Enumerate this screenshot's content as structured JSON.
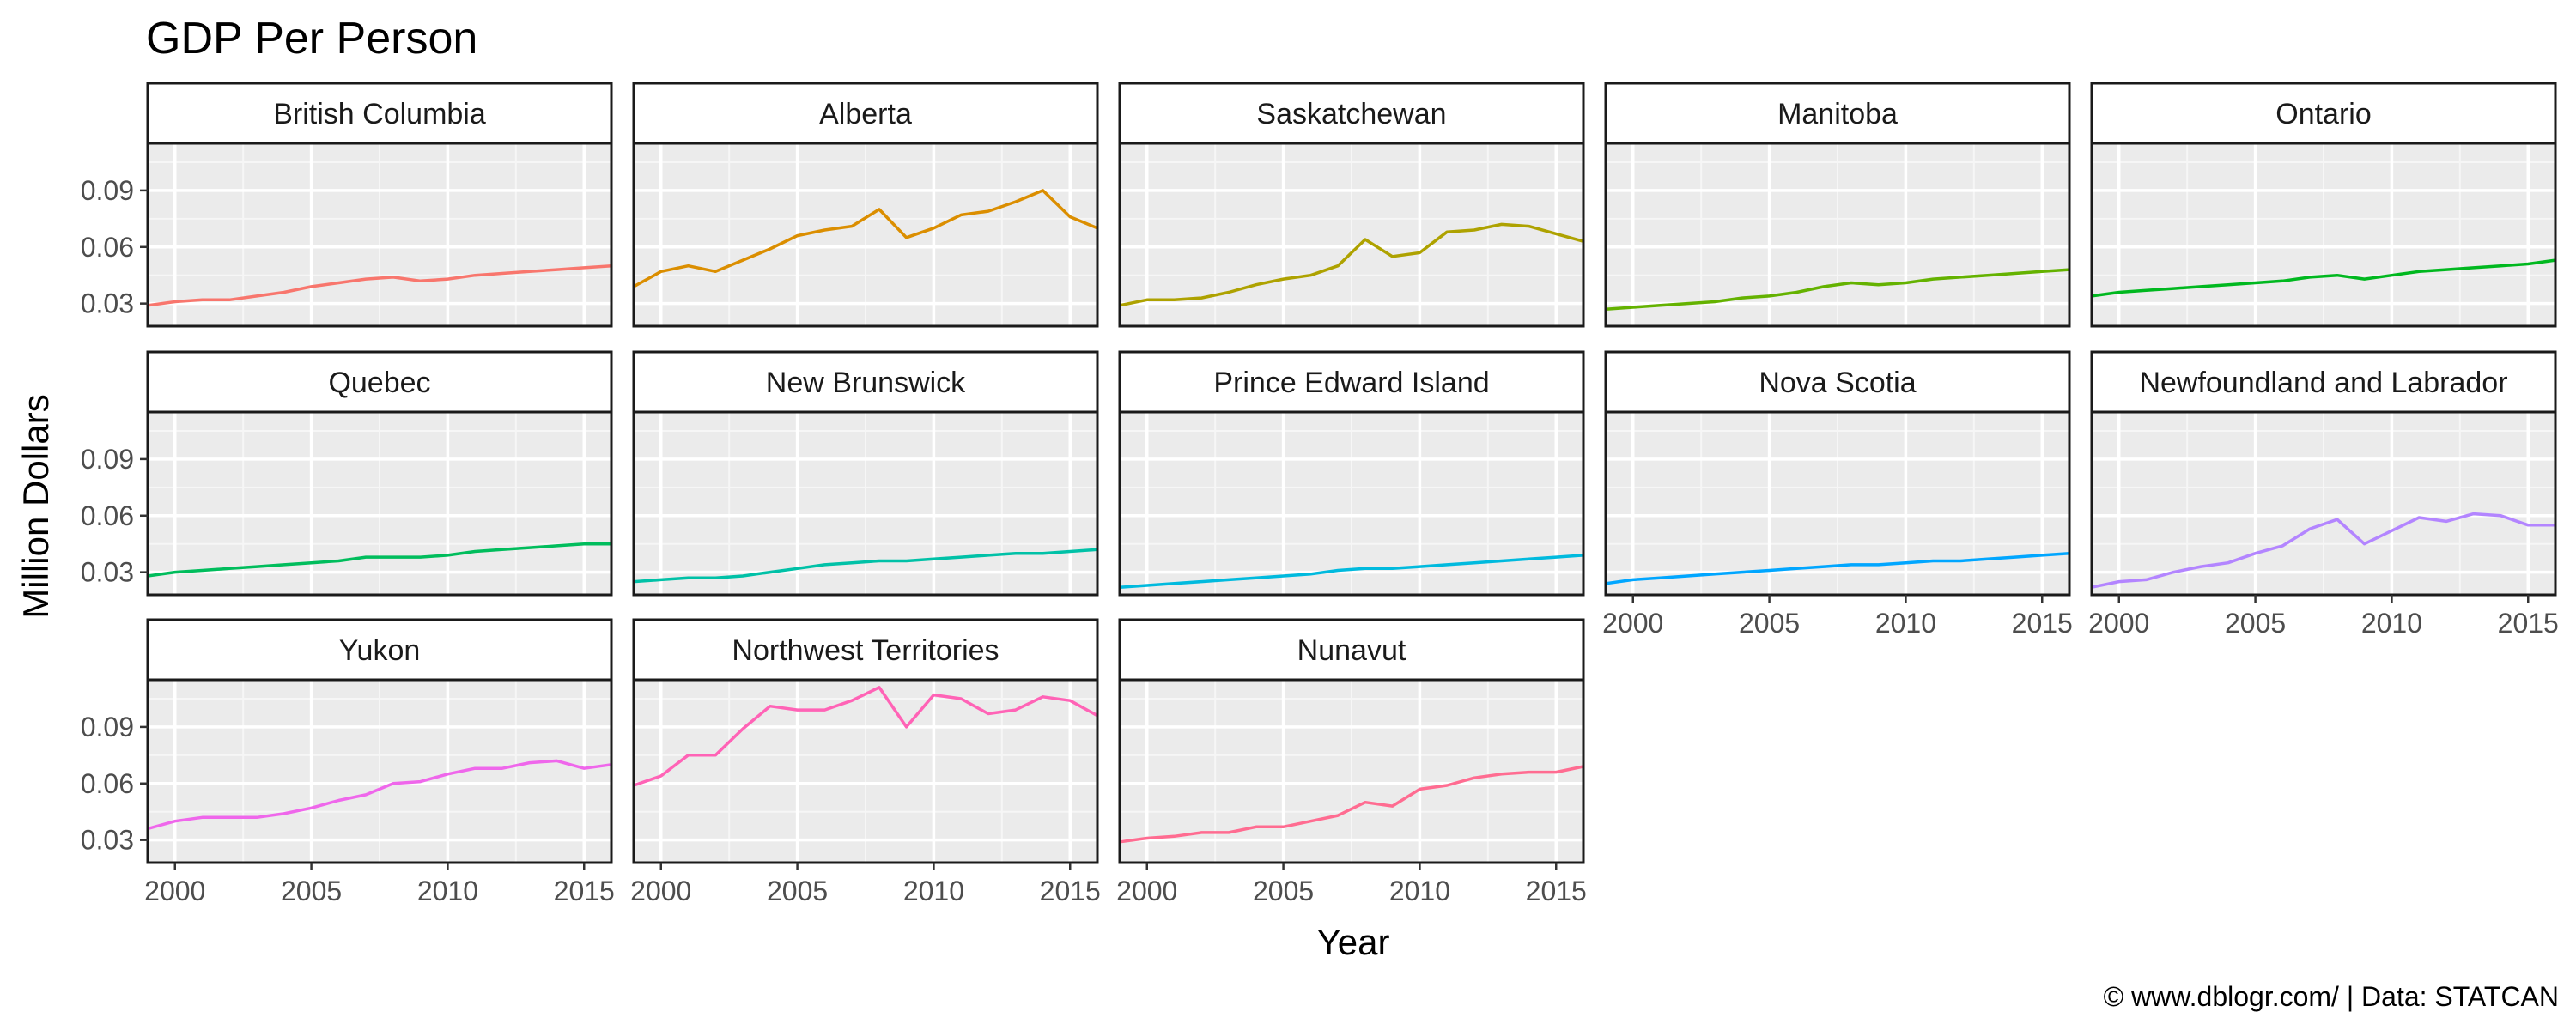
{
  "chart_data": {
    "type": "line",
    "title": "GDP Per Person",
    "xlabel": "Year",
    "ylabel": "Million Dollars",
    "caption": "© www.dblogr.com/  |  Data: STATCAN",
    "x_ticks": [
      2000,
      2005,
      2010,
      2015
    ],
    "y_ticks": [
      0.03,
      0.06,
      0.09
    ],
    "y_tick_labels": [
      "0.03",
      "0.06",
      "0.09"
    ],
    "x_tick_labels": [
      "2000",
      "2005",
      "2010",
      "2015"
    ],
    "xlim": [
      1999,
      2016
    ],
    "ylim": [
      0.018,
      0.115
    ],
    "grid": true,
    "legend": "none",
    "years": [
      1999,
      2000,
      2001,
      2002,
      2003,
      2004,
      2005,
      2006,
      2007,
      2008,
      2009,
      2010,
      2011,
      2012,
      2013,
      2014,
      2015,
      2016
    ],
    "series": [
      {
        "name": "British Columbia",
        "color": "#F8766D",
        "values": [
          0.029,
          0.031,
          0.032,
          0.032,
          0.034,
          0.036,
          0.039,
          0.041,
          0.043,
          0.044,
          0.042,
          0.043,
          0.045,
          0.046,
          0.047,
          0.048,
          0.049,
          0.05
        ]
      },
      {
        "name": "Alberta",
        "color": "#DB8E00",
        "values": [
          0.039,
          0.047,
          0.05,
          0.047,
          0.053,
          0.059,
          0.066,
          0.069,
          0.071,
          0.08,
          0.065,
          0.07,
          0.077,
          0.079,
          0.084,
          0.09,
          0.076,
          0.07
        ]
      },
      {
        "name": "Saskatchewan",
        "color": "#AEA200",
        "values": [
          0.029,
          0.032,
          0.032,
          0.033,
          0.036,
          0.04,
          0.043,
          0.045,
          0.05,
          0.064,
          0.055,
          0.057,
          0.068,
          0.069,
          0.072,
          0.071,
          0.067,
          0.063
        ]
      },
      {
        "name": "Manitoba",
        "color": "#64B200",
        "values": [
          0.027,
          0.028,
          0.029,
          0.03,
          0.031,
          0.033,
          0.034,
          0.036,
          0.039,
          0.041,
          0.04,
          0.041,
          0.043,
          0.044,
          0.045,
          0.046,
          0.047,
          0.048
        ]
      },
      {
        "name": "Ontario",
        "color": "#00B81F",
        "values": [
          0.034,
          0.036,
          0.037,
          0.038,
          0.039,
          0.04,
          0.041,
          0.042,
          0.044,
          0.045,
          0.043,
          0.045,
          0.047,
          0.048,
          0.049,
          0.05,
          0.051,
          0.053
        ]
      },
      {
        "name": "Quebec",
        "color": "#00BD5C",
        "values": [
          0.028,
          0.03,
          0.031,
          0.032,
          0.033,
          0.034,
          0.035,
          0.036,
          0.038,
          0.038,
          0.038,
          0.039,
          0.041,
          0.042,
          0.043,
          0.044,
          0.045,
          0.045
        ]
      },
      {
        "name": "New Brunswick",
        "color": "#00C1A7",
        "values": [
          0.025,
          0.026,
          0.027,
          0.027,
          0.028,
          0.03,
          0.032,
          0.034,
          0.035,
          0.036,
          0.036,
          0.037,
          0.038,
          0.039,
          0.04,
          0.04,
          0.041,
          0.042
        ]
      },
      {
        "name": "Prince Edward Island",
        "color": "#00BADE",
        "values": [
          0.022,
          0.023,
          0.024,
          0.025,
          0.026,
          0.027,
          0.028,
          0.029,
          0.031,
          0.032,
          0.032,
          0.033,
          0.034,
          0.035,
          0.036,
          0.037,
          0.038,
          0.039
        ]
      },
      {
        "name": "Nova Scotia",
        "color": "#00A6FF",
        "values": [
          0.024,
          0.026,
          0.027,
          0.028,
          0.029,
          0.03,
          0.031,
          0.032,
          0.033,
          0.034,
          0.034,
          0.035,
          0.036,
          0.036,
          0.037,
          0.038,
          0.039,
          0.04
        ]
      },
      {
        "name": "Newfoundland and Labrador",
        "color": "#B385FF",
        "values": [
          0.022,
          0.025,
          0.026,
          0.03,
          0.033,
          0.035,
          0.04,
          0.044,
          0.053,
          0.058,
          0.045,
          0.052,
          0.059,
          0.057,
          0.061,
          0.06,
          0.055,
          0.055
        ]
      },
      {
        "name": "Yukon",
        "color": "#EF67EB",
        "values": [
          0.036,
          0.04,
          0.042,
          0.042,
          0.042,
          0.044,
          0.047,
          0.051,
          0.054,
          0.06,
          0.061,
          0.065,
          0.068,
          0.068,
          0.071,
          0.072,
          0.068,
          0.07
        ]
      },
      {
        "name": "Northwest Territories",
        "color": "#FF63B6",
        "values": [
          0.059,
          0.064,
          0.075,
          0.075,
          0.089,
          0.101,
          0.099,
          0.099,
          0.104,
          0.111,
          0.09,
          0.107,
          0.105,
          0.097,
          0.099,
          0.106,
          0.104,
          0.096
        ]
      },
      {
        "name": "Nunavut",
        "color": "#FF6C91",
        "values": [
          0.029,
          0.031,
          0.032,
          0.034,
          0.034,
          0.037,
          0.037,
          0.04,
          0.043,
          0.05,
          0.048,
          0.057,
          0.059,
          0.063,
          0.065,
          0.066,
          0.066,
          0.069
        ]
      }
    ]
  }
}
